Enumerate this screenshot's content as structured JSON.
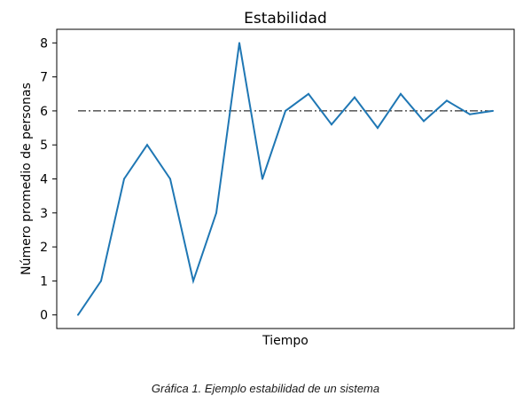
{
  "chart_data": {
    "type": "line",
    "title": "Estabilidad",
    "xlabel": "Tiempo",
    "ylabel": "Número promedio de personas",
    "ylim": [
      -0.4,
      8.4
    ],
    "yticks": [
      0,
      1,
      2,
      3,
      4,
      5,
      6,
      7,
      8
    ],
    "x": [
      0,
      1,
      2,
      3,
      4,
      5,
      6,
      7,
      8,
      9,
      10,
      11,
      12,
      13,
      14,
      15,
      16,
      17,
      18
    ],
    "series": [
      {
        "values": [
          0,
          1,
          4,
          5,
          4,
          1,
          3,
          8,
          4,
          6,
          6.5,
          5.6,
          6.4,
          5.5,
          6.5,
          5.7,
          6.3,
          5.9,
          6.0
        ],
        "color": "#1f77b4"
      }
    ],
    "reference_line": {
      "y": 6,
      "style": "dash-dot",
      "color": "#000000"
    },
    "grid": false,
    "xticks_shown": false
  },
  "caption": "Gráfica 1. Ejemplo estabilidad de un sistema"
}
